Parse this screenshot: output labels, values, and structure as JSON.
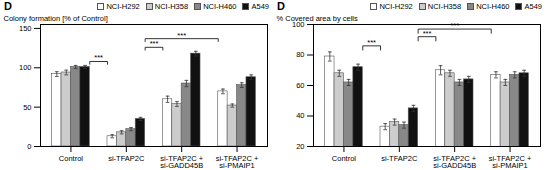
{
  "chart_data": [
    {
      "type": "bar",
      "title": "D",
      "categories": [
        "Control",
        "si-TFAP2C",
        "si-TFAP2C +\nsi-GADD45B",
        "si-TFAP2C +\nsi-PMAIP1"
      ],
      "ylabel": "Colony formation [% of Control]",
      "ylim": [
        0,
        155
      ],
      "yticks": [
        0,
        50,
        100,
        150
      ],
      "legend": "top",
      "series": [
        {
          "name": "NCI-H292",
          "color": "#ffffff",
          "values": [
            92,
            13,
            60,
            70
          ],
          "errors": [
            3,
            2,
            4,
            3
          ]
        },
        {
          "name": "NCI-H358",
          "color": "#cccccc",
          "values": [
            94,
            18,
            54,
            52
          ],
          "errors": [
            3,
            2,
            3,
            2
          ]
        },
        {
          "name": "NCI-H460",
          "color": "#888888",
          "values": [
            101,
            22,
            80,
            78
          ],
          "errors": [
            2,
            2,
            4,
            3
          ]
        },
        {
          "name": "A549",
          "color": "#111111",
          "values": [
            101,
            35,
            118,
            88
          ],
          "errors": [
            2,
            2,
            3,
            3
          ]
        }
      ],
      "annotations": [
        {
          "from": "Control",
          "to": "si-TFAP2C",
          "y": 108,
          "drop": 4,
          "label": "***"
        },
        {
          "from": "si-TFAP2C",
          "to": "si-TFAP2C +\nsi-GADD45B",
          "y": 126,
          "drop": 4,
          "label": "***"
        },
        {
          "from": "si-TFAP2C",
          "to": "si-TFAP2C +\nsi-PMAIP1",
          "y": 137,
          "drop": 4,
          "label": "***"
        }
      ]
    },
    {
      "type": "bar",
      "title": "D",
      "categories": [
        "Control",
        "si-TFAP2C",
        "si-TFAP2C +\nsi-GADD45B",
        "si-TFAP2C +\nsi-PMAIP1"
      ],
      "ylabel": "% Covered area by cells",
      "ylim": [
        20,
        100
      ],
      "yticks": [
        20,
        40,
        60,
        80,
        100
      ],
      "legend": "top",
      "series": [
        {
          "name": "NCI-H292",
          "color": "#ffffff",
          "values": [
            79,
            33,
            70,
            67
          ],
          "errors": [
            3,
            2,
            3,
            2
          ]
        },
        {
          "name": "NCI-H358",
          "color": "#cccccc",
          "values": [
            68,
            36,
            68,
            62
          ],
          "errors": [
            2,
            2,
            2,
            2
          ]
        },
        {
          "name": "NCI-H460",
          "color": "#888888",
          "values": [
            62,
            34,
            62,
            67
          ],
          "errors": [
            2,
            2,
            2,
            2
          ]
        },
        {
          "name": "A549",
          "color": "#111111",
          "values": [
            72,
            45,
            64,
            68
          ],
          "errors": [
            2,
            2,
            2,
            2
          ]
        }
      ],
      "annotations": [
        {
          "from": "Control",
          "to": "si-TFAP2C",
          "y": 86,
          "drop": 3,
          "label": "***"
        },
        {
          "from": "si-TFAP2C",
          "to": "si-TFAP2C +\nsi-GADD45B",
          "y": 92,
          "drop": 3,
          "label": "***"
        },
        {
          "from": "si-TFAP2C",
          "to": "si-TFAP2C +\nsi-PMAIP1",
          "y": 97,
          "drop": 3,
          "label": "***"
        }
      ]
    }
  ]
}
